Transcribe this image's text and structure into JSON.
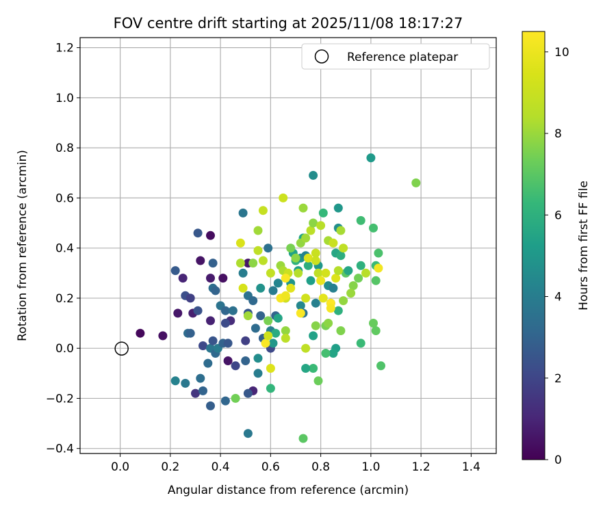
{
  "chart_data": {
    "type": "scatter",
    "title": "FOV centre drift starting at 2025/11/08 18:17:27",
    "xlabel": "Angular distance from reference (arcmin)",
    "ylabel": "Rotation from reference (arcmin)",
    "xlim": [
      -0.16,
      1.5
    ],
    "ylim": [
      -0.42,
      1.24
    ],
    "xticks": [
      0.0,
      0.2,
      0.4,
      0.6,
      0.8,
      1.0,
      1.2,
      1.4
    ],
    "xtick_labels": [
      "0.0",
      "0.2",
      "0.4",
      "0.6",
      "0.8",
      "1.0",
      "1.2",
      "1.4"
    ],
    "yticks": [
      -0.4,
      -0.2,
      0.0,
      0.2,
      0.4,
      0.6,
      0.8,
      1.0,
      1.2
    ],
    "ytick_labels": [
      "−0.4",
      "−0.2",
      "0.0",
      "0.2",
      "0.4",
      "0.6",
      "0.8",
      "1.0",
      "1.2"
    ],
    "grid": true,
    "legend": {
      "position": "top-right",
      "entries": [
        "Reference platepar"
      ]
    },
    "reference": {
      "x": 0.0,
      "y": 0.0
    },
    "colorbar": {
      "label": "Hours from first FF file",
      "range": [
        0,
        10.5
      ],
      "ticks": [
        0,
        2,
        4,
        6,
        8,
        10
      ],
      "tick_labels": [
        "0",
        "2",
        "4",
        "6",
        "8",
        "10"
      ],
      "colormap": "viridis"
    },
    "points": [
      {
        "x": 0.08,
        "y": 0.06,
        "h": 0.2
      },
      {
        "x": 0.17,
        "y": 0.05,
        "h": 0.4
      },
      {
        "x": 0.23,
        "y": 0.14,
        "h": 0.6
      },
      {
        "x": 0.25,
        "y": 0.28,
        "h": 1.0
      },
      {
        "x": 0.29,
        "y": 0.14,
        "h": 0.8
      },
      {
        "x": 0.32,
        "y": 0.35,
        "h": 0.5
      },
      {
        "x": 0.36,
        "y": 0.45,
        "h": 0.3
      },
      {
        "x": 0.36,
        "y": 0.28,
        "h": 0.7
      },
      {
        "x": 0.36,
        "y": 0.11,
        "h": 0.9
      },
      {
        "x": 0.41,
        "y": 0.28,
        "h": 0.4
      },
      {
        "x": 0.44,
        "y": 0.11,
        "h": 1.2
      },
      {
        "x": 0.43,
        "y": -0.05,
        "h": 0.5
      },
      {
        "x": 0.51,
        "y": 0.34,
        "h": 0.6
      },
      {
        "x": 0.53,
        "y": -0.17,
        "h": 1.0
      },
      {
        "x": 0.3,
        "y": -0.18,
        "h": 1.5
      },
      {
        "x": 0.31,
        "y": 0.46,
        "h": 2.6
      },
      {
        "x": 0.37,
        "y": 0.34,
        "h": 2.9
      },
      {
        "x": 0.22,
        "y": 0.31,
        "h": 2.7
      },
      {
        "x": 0.26,
        "y": 0.21,
        "h": 2.3
      },
      {
        "x": 0.28,
        "y": 0.2,
        "h": 1.8
      },
      {
        "x": 0.31,
        "y": 0.15,
        "h": 2.4
      },
      {
        "x": 0.37,
        "y": 0.24,
        "h": 3.4
      },
      {
        "x": 0.38,
        "y": 0.23,
        "h": 3.0
      },
      {
        "x": 0.4,
        "y": 0.17,
        "h": 3.6
      },
      {
        "x": 0.42,
        "y": 0.15,
        "h": 3.1
      },
      {
        "x": 0.45,
        "y": 0.15,
        "h": 3.5
      },
      {
        "x": 0.42,
        "y": 0.1,
        "h": 2.2
      },
      {
        "x": 0.27,
        "y": 0.06,
        "h": 3.3
      },
      {
        "x": 0.28,
        "y": 0.06,
        "h": 2.9
      },
      {
        "x": 0.33,
        "y": 0.01,
        "h": 2.1
      },
      {
        "x": 0.36,
        "y": 0.0,
        "h": 3.7
      },
      {
        "x": 0.37,
        "y": 0.03,
        "h": 2.5
      },
      {
        "x": 0.38,
        "y": -0.02,
        "h": 3.2
      },
      {
        "x": 0.39,
        "y": 0.0,
        "h": 3.9
      },
      {
        "x": 0.41,
        "y": 0.02,
        "h": 3.0
      },
      {
        "x": 0.43,
        "y": 0.02,
        "h": 2.6
      },
      {
        "x": 0.46,
        "y": -0.07,
        "h": 2.0
      },
      {
        "x": 0.5,
        "y": -0.05,
        "h": 3.0
      },
      {
        "x": 0.5,
        "y": 0.03,
        "h": 1.8
      },
      {
        "x": 0.35,
        "y": -0.06,
        "h": 3.3
      },
      {
        "x": 0.22,
        "y": -0.13,
        "h": 4.2
      },
      {
        "x": 0.26,
        "y": -0.14,
        "h": 3.8
      },
      {
        "x": 0.32,
        "y": -0.12,
        "h": 3.4
      },
      {
        "x": 0.33,
        "y": -0.17,
        "h": 3.0
      },
      {
        "x": 0.36,
        "y": -0.23,
        "h": 2.8
      },
      {
        "x": 0.42,
        "y": -0.21,
        "h": 3.1
      },
      {
        "x": 0.51,
        "y": -0.18,
        "h": 2.6
      },
      {
        "x": 0.51,
        "y": -0.34,
        "h": 3.8
      },
      {
        "x": 0.49,
        "y": 0.54,
        "h": 3.7
      },
      {
        "x": 0.49,
        "y": 0.3,
        "h": 4.0
      },
      {
        "x": 0.51,
        "y": 0.21,
        "h": 3.5
      },
      {
        "x": 0.53,
        "y": 0.19,
        "h": 3.2
      },
      {
        "x": 0.51,
        "y": 0.14,
        "h": 2.6
      },
      {
        "x": 0.56,
        "y": 0.13,
        "h": 3.0
      },
      {
        "x": 0.54,
        "y": 0.08,
        "h": 3.3
      },
      {
        "x": 0.57,
        "y": 0.04,
        "h": 2.9
      },
      {
        "x": 0.6,
        "y": 0.0,
        "h": 2.1
      },
      {
        "x": 0.6,
        "y": 0.07,
        "h": 4.1
      },
      {
        "x": 0.62,
        "y": 0.13,
        "h": 3.0
      },
      {
        "x": 0.59,
        "y": 0.4,
        "h": 3.5
      },
      {
        "x": 0.61,
        "y": 0.23,
        "h": 3.9
      },
      {
        "x": 0.63,
        "y": 0.26,
        "h": 4.3
      },
      {
        "x": 0.55,
        "y": -0.04,
        "h": 4.6
      },
      {
        "x": 0.55,
        "y": -0.1,
        "h": 4.0
      },
      {
        "x": 0.56,
        "y": 0.24,
        "h": 4.8
      },
      {
        "x": 0.6,
        "y": -0.16,
        "h": 6.2
      },
      {
        "x": 0.63,
        "y": 0.12,
        "h": 5.5
      },
      {
        "x": 0.61,
        "y": 0.02,
        "h": 5.0
      },
      {
        "x": 0.62,
        "y": 0.06,
        "h": 5.8
      },
      {
        "x": 0.66,
        "y": 0.2,
        "h": 4.6
      },
      {
        "x": 0.68,
        "y": 0.26,
        "h": 4.9
      },
      {
        "x": 0.69,
        "y": 0.38,
        "h": 5.4
      },
      {
        "x": 0.7,
        "y": 0.35,
        "h": 6.0
      },
      {
        "x": 0.71,
        "y": 0.31,
        "h": 5.2
      },
      {
        "x": 0.72,
        "y": 0.17,
        "h": 4.4
      },
      {
        "x": 0.73,
        "y": 0.14,
        "h": 3.6
      },
      {
        "x": 0.72,
        "y": 0.36,
        "h": 4.8
      },
      {
        "x": 0.73,
        "y": 0.44,
        "h": 5.5
      },
      {
        "x": 0.74,
        "y": 0.37,
        "h": 4.2
      },
      {
        "x": 0.75,
        "y": 0.33,
        "h": 5.9
      },
      {
        "x": 0.76,
        "y": 0.27,
        "h": 5.3
      },
      {
        "x": 0.77,
        "y": 0.69,
        "h": 4.6
      },
      {
        "x": 0.78,
        "y": 0.18,
        "h": 4.1
      },
      {
        "x": 0.79,
        "y": 0.33,
        "h": 5.0
      },
      {
        "x": 0.81,
        "y": 0.54,
        "h": 6.3
      },
      {
        "x": 0.83,
        "y": 0.25,
        "h": 4.6
      },
      {
        "x": 0.84,
        "y": 0.18,
        "h": 5.2
      },
      {
        "x": 0.85,
        "y": 0.24,
        "h": 4.1
      },
      {
        "x": 0.86,
        "y": 0.38,
        "h": 5.6
      },
      {
        "x": 0.87,
        "y": 0.56,
        "h": 5.0
      },
      {
        "x": 0.87,
        "y": 0.48,
        "h": 4.7
      },
      {
        "x": 0.88,
        "y": 0.37,
        "h": 5.9
      },
      {
        "x": 0.87,
        "y": 0.15,
        "h": 6.0
      },
      {
        "x": 0.86,
        "y": 0.0,
        "h": 5.3
      },
      {
        "x": 0.85,
        "y": -0.02,
        "h": 5.5
      },
      {
        "x": 0.82,
        "y": -0.02,
        "h": 6.6
      },
      {
        "x": 0.77,
        "y": 0.05,
        "h": 5.4
      },
      {
        "x": 0.77,
        "y": -0.08,
        "h": 6.4
      },
      {
        "x": 0.74,
        "y": -0.08,
        "h": 5.6
      },
      {
        "x": 0.79,
        "y": -0.13,
        "h": 7.3
      },
      {
        "x": 0.73,
        "y": -0.36,
        "h": 7.0
      },
      {
        "x": 0.88,
        "y": 0.07,
        "h": 7.6
      },
      {
        "x": 0.9,
        "y": 0.3,
        "h": 7.0
      },
      {
        "x": 0.91,
        "y": 0.31,
        "h": 5.6
      },
      {
        "x": 0.93,
        "y": 0.25,
        "h": 7.7
      },
      {
        "x": 0.95,
        "y": 0.28,
        "h": 7.4
      },
      {
        "x": 0.96,
        "y": 0.33,
        "h": 6.0
      },
      {
        "x": 0.96,
        "y": 0.51,
        "h": 6.5
      },
      {
        "x": 0.96,
        "y": 0.02,
        "h": 6.4
      },
      {
        "x": 1.0,
        "y": 0.76,
        "h": 5.1
      },
      {
        "x": 1.01,
        "y": 0.48,
        "h": 6.6
      },
      {
        "x": 1.01,
        "y": 0.1,
        "h": 7.2
      },
      {
        "x": 1.02,
        "y": 0.07,
        "h": 7.1
      },
      {
        "x": 1.02,
        "y": 0.33,
        "h": 6.4
      },
      {
        "x": 1.02,
        "y": 0.27,
        "h": 6.9
      },
      {
        "x": 1.03,
        "y": 0.38,
        "h": 6.7
      },
      {
        "x": 1.04,
        "y": -0.07,
        "h": 6.8
      },
      {
        "x": 1.18,
        "y": 0.66,
        "h": 7.6
      },
      {
        "x": 0.92,
        "y": 0.22,
        "h": 8.0
      },
      {
        "x": 0.98,
        "y": 0.3,
        "h": 8.5
      },
      {
        "x": 1.03,
        "y": 0.32,
        "h": 10.2
      },
      {
        "x": 0.73,
        "y": 0.56,
        "h": 8.0
      },
      {
        "x": 0.65,
        "y": 0.6,
        "h": 9.1
      },
      {
        "x": 0.57,
        "y": 0.55,
        "h": 8.9
      },
      {
        "x": 0.55,
        "y": 0.47,
        "h": 8.1
      },
      {
        "x": 0.48,
        "y": 0.42,
        "h": 9.5
      },
      {
        "x": 0.48,
        "y": 0.34,
        "h": 8.3
      },
      {
        "x": 0.53,
        "y": 0.34,
        "h": 7.8
      },
      {
        "x": 0.55,
        "y": 0.39,
        "h": 8.7
      },
      {
        "x": 0.57,
        "y": 0.35,
        "h": 8.6
      },
      {
        "x": 0.49,
        "y": 0.24,
        "h": 9.4
      },
      {
        "x": 0.51,
        "y": 0.13,
        "h": 8.1
      },
      {
        "x": 0.59,
        "y": 0.11,
        "h": 7.5
      },
      {
        "x": 0.6,
        "y": 0.3,
        "h": 8.8
      },
      {
        "x": 0.64,
        "y": 0.33,
        "h": 8.0
      },
      {
        "x": 0.65,
        "y": 0.31,
        "h": 8.3
      },
      {
        "x": 0.67,
        "y": 0.3,
        "h": 9.0
      },
      {
        "x": 0.66,
        "y": 0.2,
        "h": 9.3
      },
      {
        "x": 0.68,
        "y": 0.4,
        "h": 7.5
      },
      {
        "x": 0.7,
        "y": 0.36,
        "h": 7.8
      },
      {
        "x": 0.71,
        "y": 0.3,
        "h": 8.4
      },
      {
        "x": 0.72,
        "y": 0.42,
        "h": 7.9
      },
      {
        "x": 0.74,
        "y": 0.44,
        "h": 8.1
      },
      {
        "x": 0.75,
        "y": 0.36,
        "h": 9.6
      },
      {
        "x": 0.76,
        "y": 0.47,
        "h": 8.6
      },
      {
        "x": 0.77,
        "y": 0.5,
        "h": 7.8
      },
      {
        "x": 0.78,
        "y": 0.35,
        "h": 9.1
      },
      {
        "x": 0.78,
        "y": 0.38,
        "h": 9.0
      },
      {
        "x": 0.79,
        "y": 0.3,
        "h": 8.7
      },
      {
        "x": 0.8,
        "y": 0.49,
        "h": 8.5
      },
      {
        "x": 0.8,
        "y": 0.27,
        "h": 10.0
      },
      {
        "x": 0.81,
        "y": 0.2,
        "h": 9.8
      },
      {
        "x": 0.82,
        "y": 0.3,
        "h": 9.3
      },
      {
        "x": 0.83,
        "y": 0.43,
        "h": 8.2
      },
      {
        "x": 0.84,
        "y": 0.18,
        "h": 10.5
      },
      {
        "x": 0.84,
        "y": 0.16,
        "h": 10.3
      },
      {
        "x": 0.85,
        "y": 0.42,
        "h": 9.0
      },
      {
        "x": 0.86,
        "y": 0.28,
        "h": 9.6
      },
      {
        "x": 0.87,
        "y": 0.31,
        "h": 8.4
      },
      {
        "x": 0.88,
        "y": 0.47,
        "h": 8.2
      },
      {
        "x": 0.89,
        "y": 0.4,
        "h": 8.7
      },
      {
        "x": 0.89,
        "y": 0.19,
        "h": 7.9
      },
      {
        "x": 0.64,
        "y": 0.2,
        "h": 10.3
      },
      {
        "x": 0.66,
        "y": 0.21,
        "h": 10.1
      },
      {
        "x": 0.66,
        "y": 0.28,
        "h": 10.4
      },
      {
        "x": 0.68,
        "y": 0.24,
        "h": 9.7
      },
      {
        "x": 0.72,
        "y": 0.14,
        "h": 10.4
      },
      {
        "x": 0.74,
        "y": 0.2,
        "h": 9.2
      },
      {
        "x": 0.74,
        "y": 0.0,
        "h": 8.7
      },
      {
        "x": 0.66,
        "y": 0.07,
        "h": 7.9
      },
      {
        "x": 0.66,
        "y": 0.04,
        "h": 8.6
      },
      {
        "x": 0.6,
        "y": -0.08,
        "h": 9.6
      },
      {
        "x": 0.58,
        "y": 0.02,
        "h": 10.4
      },
      {
        "x": 0.59,
        "y": 0.05,
        "h": 9.2
      },
      {
        "x": 0.46,
        "y": -0.2,
        "h": 7.4
      },
      {
        "x": 0.78,
        "y": 0.09,
        "h": 7.7
      },
      {
        "x": 0.82,
        "y": 0.09,
        "h": 7.5
      },
      {
        "x": 0.83,
        "y": 0.1,
        "h": 7.8
      }
    ]
  }
}
